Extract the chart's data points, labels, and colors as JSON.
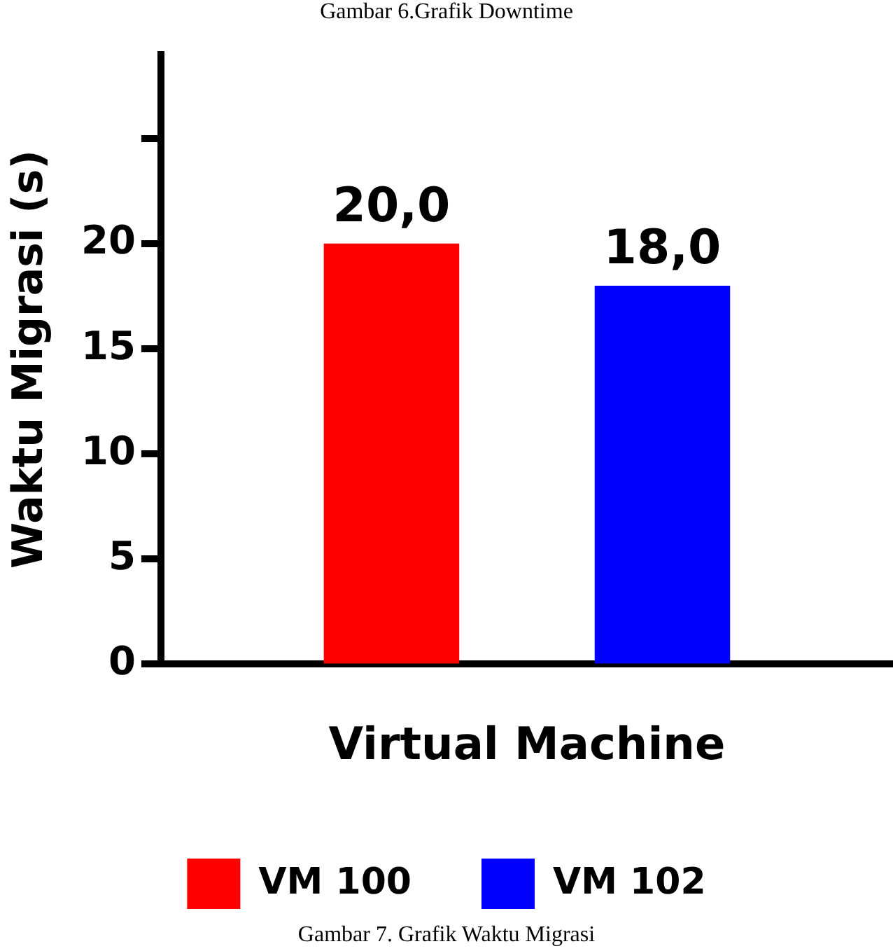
{
  "chart_data": {
    "type": "bar",
    "xlabel": "Virtual Machine",
    "ylabel": "Waktu Migrasi (s)",
    "categories": [
      null
    ],
    "series": [
      {
        "name": "VM 100",
        "color": "#ff0000",
        "values": [
          20
        ],
        "value_labels": [
          "20,0"
        ]
      },
      {
        "name": "VM 102",
        "color": "#0000ff",
        "values": [
          18
        ],
        "value_labels": [
          "18,0"
        ]
      }
    ],
    "ylim": [
      0,
      29
    ],
    "yticks": [
      0,
      5,
      10,
      15,
      20,
      {
        "value": 25,
        "label": null
      }
    ],
    "grid": false,
    "legend": "bottom",
    "annotations": [
      "Gambar 6.Grafik Downtime",
      "Gambar 7. Grafik Waktu Migrasi"
    ]
  }
}
